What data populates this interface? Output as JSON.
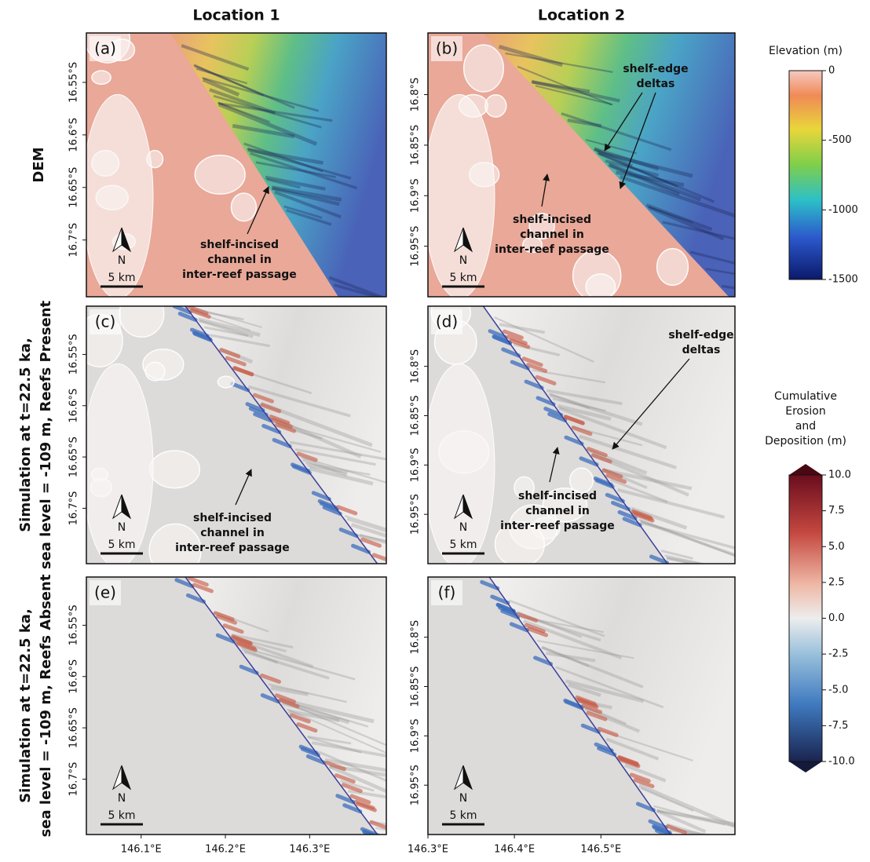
{
  "columns": [
    "Location 1",
    "Location 2"
  ],
  "rows": [
    {
      "label_lines": [
        "DEM"
      ]
    },
    {
      "label_lines": [
        "Simulation at t=22.5 ka,",
        "sea level = -109 m, Reefs Present"
      ]
    },
    {
      "label_lines": [
        "Simulation at t=22.5 ka,",
        "sea level = -109 m, Reefs Absent"
      ]
    }
  ],
  "panels": [
    {
      "label": "(a)",
      "north": "N",
      "scale": "5 km",
      "annotations": [
        {
          "lines": [
            "shelf-incised",
            "channel in",
            "inter-reef passage"
          ]
        }
      ]
    },
    {
      "label": "(b)",
      "north": "N",
      "scale": "5 km",
      "annotations": [
        {
          "lines": [
            "shelf-edge",
            "deltas"
          ]
        },
        {
          "lines": [
            "shelf-incised",
            "channel in",
            "inter-reef passage"
          ]
        }
      ]
    },
    {
      "label": "(c)",
      "north": "N",
      "scale": "5 km",
      "annotations": [
        {
          "lines": [
            "shelf-incised",
            "channel in",
            "inter-reef passage"
          ]
        }
      ]
    },
    {
      "label": "(d)",
      "north": "N",
      "scale": "5 km",
      "annotations": [
        {
          "lines": [
            "shelf-edge",
            "deltas"
          ]
        },
        {
          "lines": [
            "shelf-incised",
            "channel in",
            "inter-reef passage"
          ]
        }
      ]
    },
    {
      "label": "(e)",
      "north": "N",
      "scale": "5 km",
      "annotations": []
    },
    {
      "label": "(f)",
      "north": "N",
      "scale": "5 km",
      "annotations": []
    }
  ],
  "latitude_axes": [
    {
      "lim": [
        -16.503,
        -16.754
      ],
      "ticks": [
        {
          "value": -16.55,
          "label": "16.55°S"
        },
        {
          "value": -16.6,
          "label": "16.6°S"
        },
        {
          "value": -16.65,
          "label": "16.65°S"
        },
        {
          "value": -16.7,
          "label": "16.7°S"
        }
      ]
    },
    {
      "lim": [
        -16.739,
        -17.0
      ],
      "ticks": [
        {
          "value": -16.8,
          "label": "16.8°S"
        },
        {
          "value": -16.85,
          "label": "16.85°S"
        },
        {
          "value": -16.9,
          "label": "16.9°S"
        },
        {
          "value": -16.95,
          "label": "16.95°S"
        }
      ]
    }
  ],
  "longitude_axes": [
    {
      "lim": [
        146.035,
        146.391
      ],
      "ticks": [
        {
          "value": 146.1,
          "label": "146.1°E"
        },
        {
          "value": 146.2,
          "label": "146.2°E"
        },
        {
          "value": 146.3,
          "label": "146.3°E"
        }
      ]
    },
    {
      "lim": [
        146.3,
        146.655
      ],
      "ticks": [
        {
          "value": 146.3,
          "label": "146.3°E"
        },
        {
          "value": 146.4,
          "label": "146.4°E"
        },
        {
          "value": 146.5,
          "label": "146.5°E"
        }
      ]
    }
  ],
  "colorbars": [
    {
      "title_lines": [
        "Elevation (m)"
      ],
      "lim": [
        -1500,
        0
      ],
      "ticks": [
        0,
        -500,
        -1000,
        -1500
      ]
    },
    {
      "title_lines": [
        "Cumulative",
        "Erosion",
        "and",
        "Deposition (m)"
      ],
      "lim": [
        -10,
        10
      ],
      "ticks": [
        {
          "value": 10,
          "label": "10.0"
        },
        {
          "value": 7.5,
          "label": "7.5"
        },
        {
          "value": 5,
          "label": "5.0"
        },
        {
          "value": 2.5,
          "label": "2.5"
        },
        {
          "value": 0,
          "label": "0.0"
        },
        {
          "value": -2.5,
          "label": "-2.5"
        },
        {
          "value": -5,
          "label": "-5.0"
        },
        {
          "value": -7.5,
          "label": "-7.5"
        },
        {
          "value": -10,
          "label": "-10.0"
        }
      ]
    }
  ]
}
